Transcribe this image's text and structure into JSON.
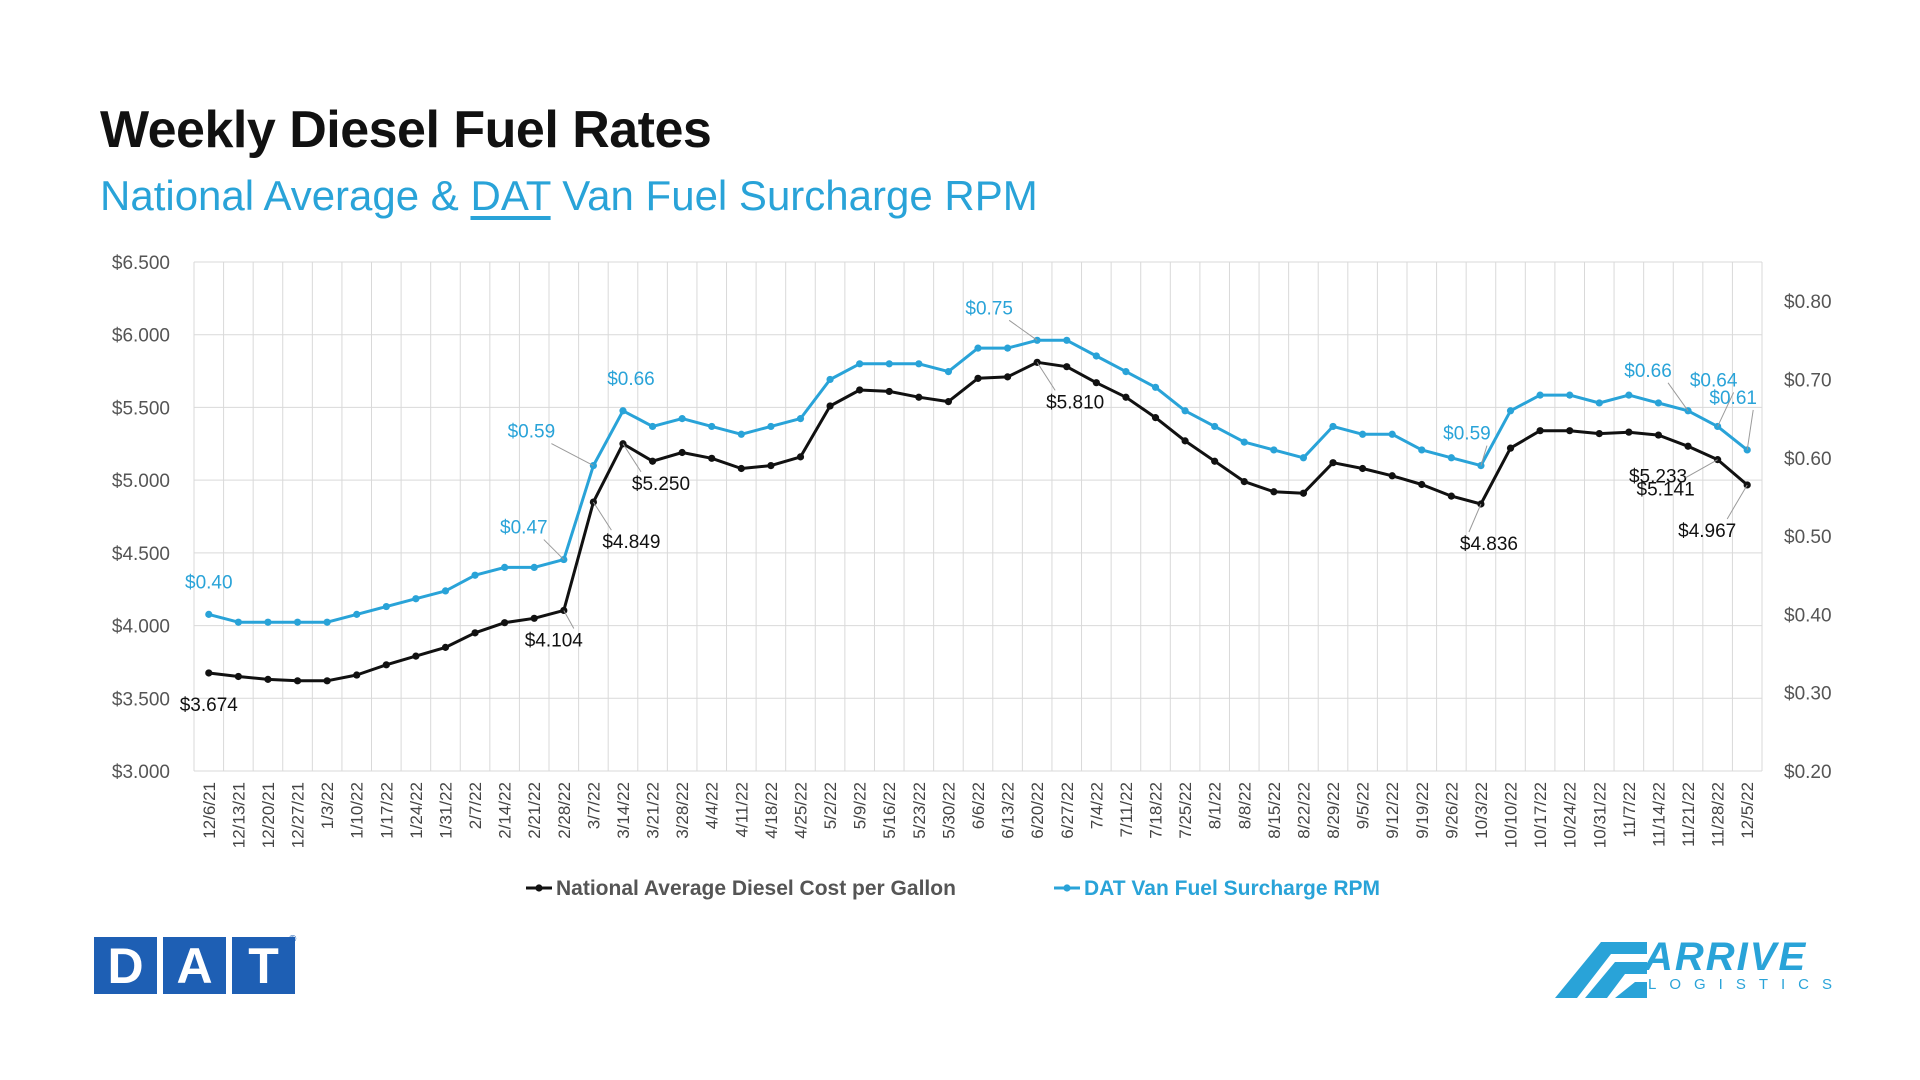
{
  "header": {
    "title": "Weekly Diesel Fuel Rates",
    "subtitle_part1": "National Average & ",
    "subtitle_dat": "DAT",
    "subtitle_part2": " Van Fuel Surcharge RPM"
  },
  "colors": {
    "diesel": "#111111",
    "surcharge": "#29a3d8",
    "grid": "#d9d9d9",
    "axis_text": "#555555"
  },
  "chart_data": {
    "type": "line",
    "x": [
      "12/6/21",
      "12/13/21",
      "12/20/21",
      "12/27/21",
      "1/3/22",
      "1/10/22",
      "1/17/22",
      "1/24/22",
      "1/31/22",
      "2/7/22",
      "2/14/22",
      "2/21/22",
      "2/28/22",
      "3/7/22",
      "3/14/22",
      "3/21/22",
      "3/28/22",
      "4/4/22",
      "4/11/22",
      "4/18/22",
      "4/25/22",
      "5/2/22",
      "5/9/22",
      "5/16/22",
      "5/23/22",
      "5/30/22",
      "6/6/22",
      "6/13/22",
      "6/20/22",
      "6/27/22",
      "7/4/22",
      "7/11/22",
      "7/18/22",
      "7/25/22",
      "8/1/22",
      "8/8/22",
      "8/15/22",
      "8/22/22",
      "8/29/22",
      "9/5/22",
      "9/12/22",
      "9/19/22",
      "9/26/22",
      "10/3/22",
      "10/10/22",
      "10/17/22",
      "10/24/22",
      "10/31/22",
      "11/7/22",
      "11/14/22",
      "11/21/22",
      "11/28/22",
      "12/5/22"
    ],
    "series": [
      {
        "name": "National Average Diesel Cost per Gallon",
        "axis": "left",
        "values": [
          3.674,
          3.65,
          3.63,
          3.62,
          3.62,
          3.66,
          3.73,
          3.79,
          3.85,
          3.95,
          4.02,
          4.05,
          4.104,
          4.849,
          5.25,
          5.13,
          5.19,
          5.15,
          5.08,
          5.1,
          5.16,
          5.51,
          5.62,
          5.61,
          5.57,
          5.54,
          5.7,
          5.71,
          5.81,
          5.78,
          5.67,
          5.57,
          5.43,
          5.27,
          5.13,
          4.99,
          4.92,
          4.91,
          5.12,
          5.08,
          5.03,
          4.97,
          4.89,
          4.836,
          5.22,
          5.34,
          5.34,
          5.32,
          5.33,
          5.31,
          5.233,
          5.141,
          4.967
        ]
      },
      {
        "name": "DAT Van Fuel Surcharge RPM",
        "axis": "right",
        "values": [
          0.4,
          0.39,
          0.39,
          0.39,
          0.39,
          0.4,
          0.41,
          0.42,
          0.43,
          0.45,
          0.46,
          0.46,
          0.47,
          0.59,
          0.66,
          0.64,
          0.65,
          0.64,
          0.63,
          0.64,
          0.65,
          0.7,
          0.72,
          0.72,
          0.72,
          0.71,
          0.74,
          0.74,
          0.75,
          0.75,
          0.73,
          0.71,
          0.69,
          0.66,
          0.64,
          0.62,
          0.61,
          0.6,
          0.64,
          0.63,
          0.63,
          0.61,
          0.6,
          0.59,
          0.66,
          0.68,
          0.68,
          0.67,
          0.68,
          0.67,
          0.66,
          0.64,
          0.61
        ]
      }
    ],
    "left_axis": {
      "min": 3.0,
      "max": 6.5,
      "ticks": [
        "$3.000",
        "$3.500",
        "$4.000",
        "$4.500",
        "$5.000",
        "$5.500",
        "$6.000",
        "$6.500"
      ]
    },
    "right_axis": {
      "min": 0.2,
      "max": 0.85,
      "ticks": [
        "$0.20",
        "$0.30",
        "$0.40",
        "$0.50",
        "$0.60",
        "$0.70",
        "$0.80"
      ]
    },
    "annotations_diesel": [
      {
        "index": 0,
        "text": "$3.674"
      },
      {
        "index": 12,
        "text": "$4.104"
      },
      {
        "index": 13,
        "text": "$4.849"
      },
      {
        "index": 14,
        "text": "$5.250"
      },
      {
        "index": 28,
        "text": "$5.810"
      },
      {
        "index": 43,
        "text": "$4.836"
      },
      {
        "index": 50,
        "text": "$5.233"
      },
      {
        "index": 51,
        "text": "$5.141"
      },
      {
        "index": 52,
        "text": "$4.967"
      }
    ],
    "annotations_surcharge": [
      {
        "index": 0,
        "text": "$0.40"
      },
      {
        "index": 12,
        "text": "$0.47"
      },
      {
        "index": 13,
        "text": "$0.59"
      },
      {
        "index": 14,
        "text": "$0.66"
      },
      {
        "index": 28,
        "text": "$0.75"
      },
      {
        "index": 43,
        "text": "$0.59"
      },
      {
        "index": 50,
        "text": "$0.66"
      },
      {
        "index": 51,
        "text": "$0.64"
      },
      {
        "index": 52,
        "text": "$0.61"
      }
    ],
    "grid": true,
    "legend_position": "bottom"
  },
  "logos": {
    "dat_letters": [
      "D",
      "A",
      "T"
    ],
    "dat_reg": "®",
    "arrive_name": "ARRIVE",
    "arrive_sub": "LOGISTICS"
  }
}
